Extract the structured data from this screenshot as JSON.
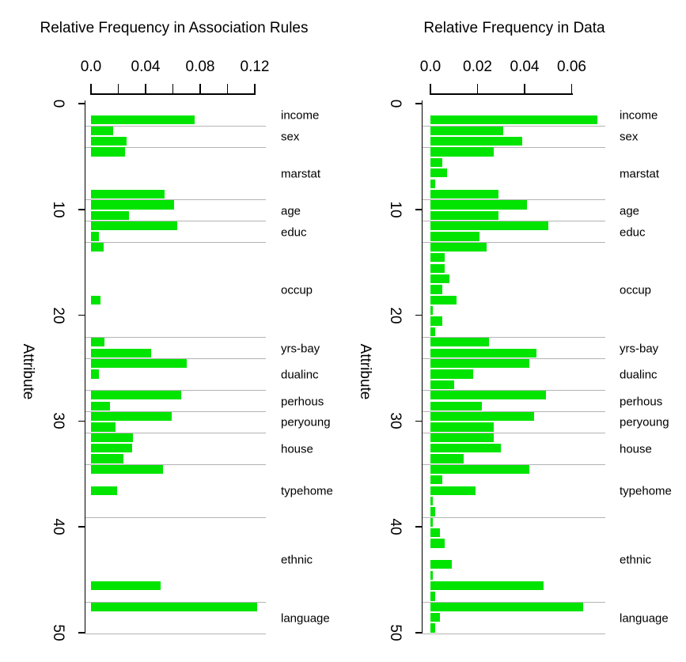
{
  "figure": {
    "background": "#ffffff"
  },
  "style": {
    "bar_color": "#00e400",
    "grid_color": "#b3b3b3",
    "axis_color": "#000000",
    "text_color": "#000000"
  },
  "items_axis": {
    "label": "Attribute",
    "ticks": [
      "0",
      "10",
      "20",
      "30",
      "40",
      "50"
    ],
    "min": 0,
    "max": 50
  },
  "groups": [
    {
      "label": "income",
      "start": 0,
      "end": 2
    },
    {
      "label": "sex",
      "start": 2,
      "end": 4
    },
    {
      "label": "marstat",
      "start": 4,
      "end": 9
    },
    {
      "label": "age",
      "start": 9,
      "end": 11
    },
    {
      "label": "educ",
      "start": 11,
      "end": 13
    },
    {
      "label": "occup",
      "start": 13,
      "end": 22
    },
    {
      "label": "yrs-bay",
      "start": 22,
      "end": 24
    },
    {
      "label": "dualinc",
      "start": 24,
      "end": 27
    },
    {
      "label": "perhous",
      "start": 27,
      "end": 29
    },
    {
      "label": "peryoung",
      "start": 29,
      "end": 31
    },
    {
      "label": "house",
      "start": 31,
      "end": 34
    },
    {
      "label": "typehome",
      "start": 34,
      "end": 39
    },
    {
      "label": "ethnic",
      "start": 39,
      "end": 47
    },
    {
      "label": "language",
      "start": 47,
      "end": 50
    }
  ],
  "chart_data": [
    {
      "type": "bar",
      "orientation": "horizontal",
      "title": "Relative Frequency in Association Rules",
      "xlabel": "",
      "ylabel": "Attribute",
      "grid": "group-boundaries",
      "value_axis": {
        "lim": [
          0,
          0.128
        ],
        "ticks": [
          {
            "v": 0.0,
            "label": "0.0"
          },
          {
            "v": 0.02,
            "label": ""
          },
          {
            "v": 0.04,
            "label": "0.04"
          },
          {
            "v": 0.06,
            "label": ""
          },
          {
            "v": 0.08,
            "label": "0.08"
          },
          {
            "v": 0.1,
            "label": ""
          },
          {
            "v": 0.12,
            "label": "0.12"
          }
        ]
      },
      "n_items": 50,
      "values": [
        0,
        0.076,
        0.016,
        0.026,
        0.025,
        0,
        0,
        0,
        0.054,
        0.061,
        0.028,
        0.063,
        0.006,
        0.009,
        0,
        0,
        0,
        0,
        0.007,
        0,
        0,
        0,
        0.01,
        0.044,
        0.07,
        0.006,
        0,
        0.066,
        0.014,
        0.059,
        0.018,
        0.031,
        0.03,
        0.024,
        0.053,
        0,
        0.019,
        0,
        0,
        0,
        0,
        0,
        0,
        0,
        0,
        0.051,
        0,
        0.122,
        0,
        0
      ]
    },
    {
      "type": "bar",
      "orientation": "horizontal",
      "title": "Relative Frequency in Data",
      "xlabel": "",
      "ylabel": "Attribute",
      "grid": "group-boundaries",
      "value_axis": {
        "lim": [
          0,
          0.074
        ],
        "ticks": [
          {
            "v": 0.0,
            "label": "0.0"
          },
          {
            "v": 0.02,
            "label": "0.02"
          },
          {
            "v": 0.04,
            "label": "0.04"
          },
          {
            "v": 0.06,
            "label": "0.06"
          }
        ]
      },
      "n_items": 50,
      "values": [
        0,
        0.071,
        0.031,
        0.039,
        0.027,
        0.005,
        0.007,
        0.002,
        0.029,
        0.041,
        0.029,
        0.05,
        0.021,
        0.024,
        0.006,
        0.006,
        0.008,
        0.005,
        0.011,
        0.001,
        0.005,
        0.002,
        0.025,
        0.045,
        0.042,
        0.018,
        0.01,
        0.049,
        0.022,
        0.044,
        0.027,
        0.027,
        0.03,
        0.014,
        0.042,
        0.005,
        0.019,
        0.001,
        0.002,
        0.001,
        0.004,
        0.006,
        0,
        0.009,
        0.001,
        0.048,
        0.002,
        0.065,
        0.004,
        0.002
      ]
    }
  ]
}
